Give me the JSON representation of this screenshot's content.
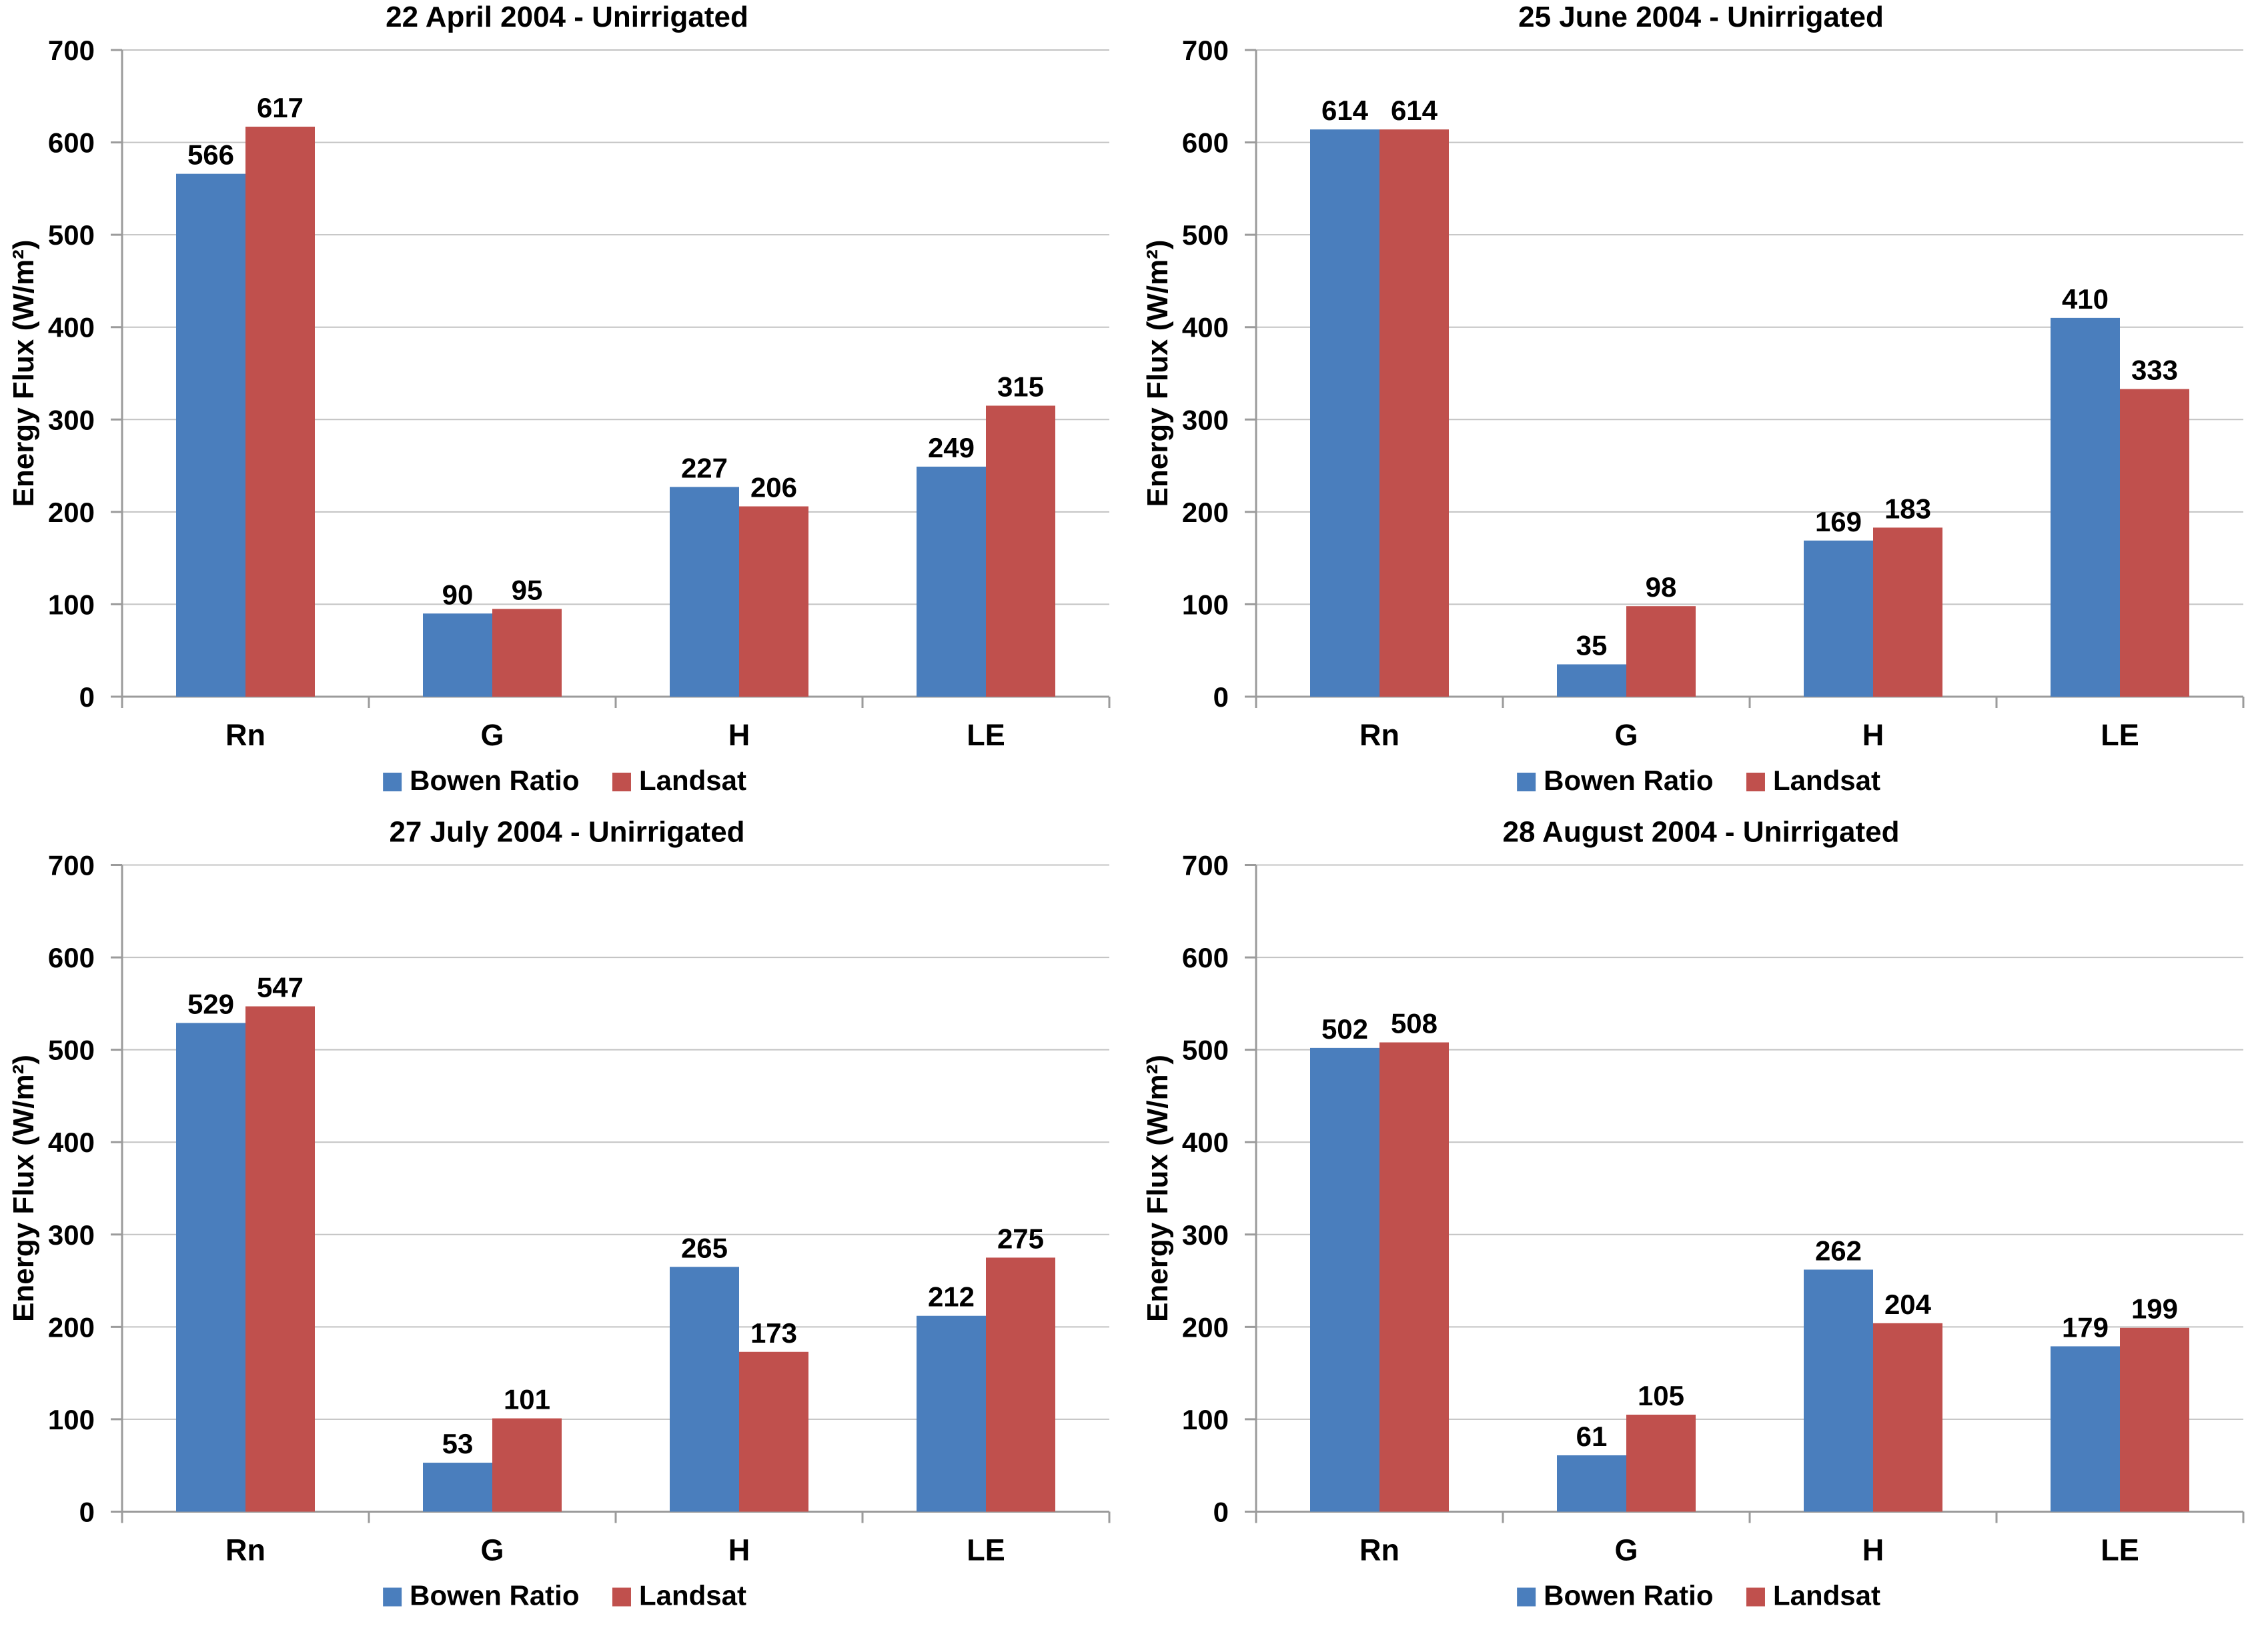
{
  "page": {
    "background": "#FFFFFF",
    "layout": "2x2 grid of bar charts"
  },
  "style": {
    "series_colors": {
      "bowen_ratio": "#4A7EBD",
      "landsat": "#C0504D"
    },
    "gridline_color": "#C3C3C3",
    "axis_color": "#9B9B9B",
    "text_color": "#000000"
  },
  "legend": {
    "items": [
      {
        "label": "Bowen Ratio",
        "color": "#4A7EBD"
      },
      {
        "label": "Landsat",
        "color": "#C0504D"
      }
    ],
    "position": "bottom"
  },
  "chart_data": [
    {
      "type": "bar",
      "title": "22 April 2004 - Unirrigated",
      "xlabel": "",
      "ylabel": "Energy Flux (W/m²)",
      "ylim": [
        0,
        700
      ],
      "ytick_step": 100,
      "yticks": [
        0,
        100,
        200,
        300,
        400,
        500,
        600,
        700
      ],
      "grid": true,
      "legend_position": "bottom",
      "data_labels": true,
      "categories": [
        "Rn",
        "G",
        "H",
        "LE"
      ],
      "series": [
        {
          "name": "Bowen Ratio",
          "color": "#4A7EBD",
          "values": [
            566,
            90,
            227,
            249
          ]
        },
        {
          "name": "Landsat",
          "color": "#C0504D",
          "values": [
            617,
            95,
            206,
            315
          ]
        }
      ]
    },
    {
      "type": "bar",
      "title": "25 June 2004 - Unirrigated",
      "xlabel": "",
      "ylabel": "Energy Flux (W/m²)",
      "ylim": [
        0,
        700
      ],
      "ytick_step": 100,
      "yticks": [
        0,
        100,
        200,
        300,
        400,
        500,
        600,
        700
      ],
      "grid": true,
      "legend_position": "bottom",
      "data_labels": true,
      "categories": [
        "Rn",
        "G",
        "H",
        "LE"
      ],
      "series": [
        {
          "name": "Bowen Ratio",
          "color": "#4A7EBD",
          "values": [
            614,
            35,
            169,
            410
          ]
        },
        {
          "name": "Landsat",
          "color": "#C0504D",
          "values": [
            614,
            98,
            183,
            333
          ]
        }
      ]
    },
    {
      "type": "bar",
      "title": "27 July 2004 - Unirrigated",
      "xlabel": "",
      "ylabel": "Energy Flux (W/m²)",
      "ylim": [
        0,
        700
      ],
      "ytick_step": 100,
      "yticks": [
        0,
        100,
        200,
        300,
        400,
        500,
        600,
        700
      ],
      "grid": true,
      "legend_position": "bottom",
      "data_labels": true,
      "categories": [
        "Rn",
        "G",
        "H",
        "LE"
      ],
      "series": [
        {
          "name": "Bowen Ratio",
          "color": "#4A7EBD",
          "values": [
            529,
            53,
            265,
            212
          ]
        },
        {
          "name": "Landsat",
          "color": "#C0504D",
          "values": [
            547,
            101,
            173,
            275
          ]
        }
      ]
    },
    {
      "type": "bar",
      "title": "28 August 2004 - Unirrigated",
      "xlabel": "",
      "ylabel": "Energy Flux (W/m²)",
      "ylim": [
        0,
        700
      ],
      "ytick_step": 100,
      "yticks": [
        0,
        100,
        200,
        300,
        400,
        500,
        600,
        700
      ],
      "grid": true,
      "legend_position": "bottom",
      "data_labels": true,
      "categories": [
        "Rn",
        "G",
        "H",
        "LE"
      ],
      "series": [
        {
          "name": "Bowen Ratio",
          "color": "#4A7EBD",
          "values": [
            502,
            61,
            262,
            179
          ]
        },
        {
          "name": "Landsat",
          "color": "#C0504D",
          "values": [
            508,
            105,
            204,
            199
          ]
        }
      ]
    }
  ]
}
